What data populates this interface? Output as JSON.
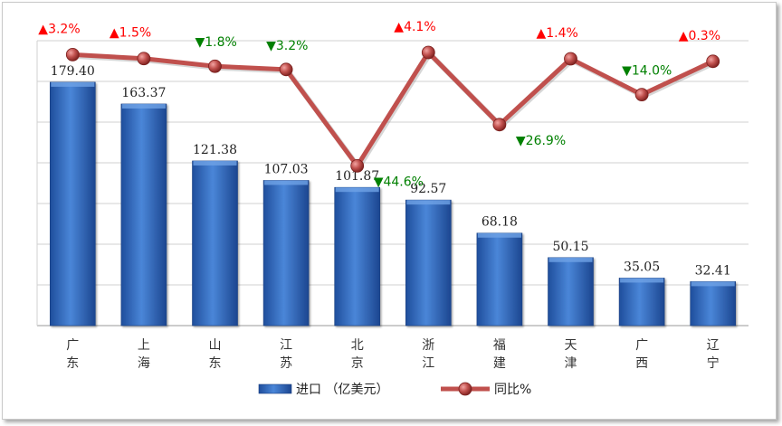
{
  "chart_data": {
    "type": "bar",
    "categories": [
      "广东",
      "上海",
      "山东",
      "江苏",
      "北京",
      "浙江",
      "福建",
      "天津",
      "广西",
      "辽宁"
    ],
    "series": [
      {
        "name": "进口 （亿美元）",
        "type": "bar",
        "axis": "left",
        "values": [
          179.4,
          163.37,
          121.38,
          107.03,
          101.87,
          92.57,
          68.18,
          50.15,
          35.05,
          32.41
        ],
        "labels": [
          "179.40",
          "163.37",
          "121.38",
          "107.03",
          "101.87",
          "92.57",
          "68.18",
          "50.15",
          "35.05",
          "32.41"
        ],
        "color": "#3a70c4"
      },
      {
        "name": "同比%",
        "type": "line",
        "axis": "right",
        "values": [
          3.2,
          1.5,
          -1.8,
          -3.2,
          -44.6,
          4.1,
          -26.9,
          1.4,
          -14.0,
          0.3
        ],
        "labels": [
          "3.2%",
          "1.5%",
          "1.8%",
          "3.2%",
          "44.6%",
          "4.1%",
          "26.9%",
          "1.4%",
          "14.0%",
          "0.3%"
        ],
        "color": "#c0504d"
      }
    ],
    "ylim": [
      0,
      210
    ],
    "y2lim": [
      -60,
      8
    ],
    "grid": true,
    "legend": "bottom",
    "colors": {
      "up": "#ff0000",
      "down": "#008000",
      "bar": "#3a70c4",
      "line": "#c0504d"
    }
  }
}
